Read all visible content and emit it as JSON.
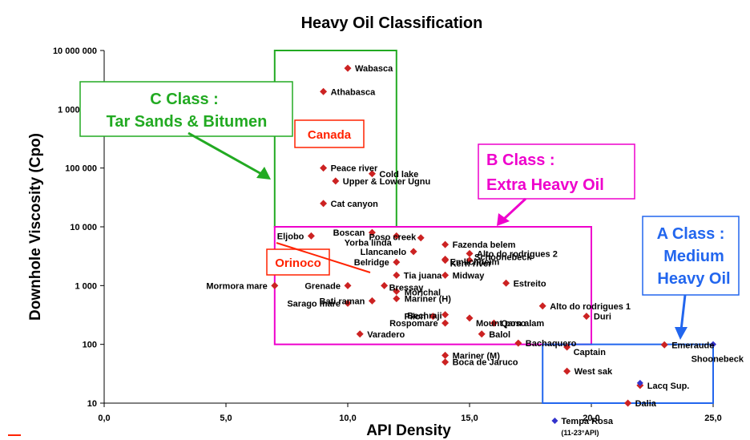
{
  "chart_data": {
    "type": "scatter",
    "title": "Heavy Oil Classification",
    "xlabel": "API Density",
    "ylabel": "Downhole Viscosity (Cpo)",
    "xlim": [
      0,
      25
    ],
    "ylim": [
      10,
      10000000
    ],
    "y_scale": "log",
    "grid": false,
    "x_ticks": [
      "0,0",
      "5,0",
      "10,0",
      "15,0",
      "20,0",
      "25,0"
    ],
    "y_ticks": [
      "10",
      "100",
      "1 000",
      "10 000",
      "100 000",
      "1 000 000",
      "10 000 000"
    ],
    "colors": {
      "point": "#cc2222",
      "blue_point": "#3333cc",
      "c_class": "#22aa22",
      "b_class": "#ee00cc",
      "a_class": "#2266ee",
      "region": "#ff2200"
    },
    "points": [
      {
        "name": "Wabasca",
        "x": 10.0,
        "y": 5000000
      },
      {
        "name": "Athabasca",
        "x": 9.0,
        "y": 2000000
      },
      {
        "name": "Peace river",
        "x": 9.0,
        "y": 100000
      },
      {
        "name": "Cold lake",
        "x": 11.0,
        "y": 80000
      },
      {
        "name": "Upper & Lower Ugnu",
        "x": 9.5,
        "y": 60000
      },
      {
        "name": "Cat canyon",
        "x": 9.0,
        "y": 25000
      },
      {
        "name": "Eljobo",
        "x": 8.5,
        "y": 7000
      },
      {
        "name": "Boscan",
        "x": 11.0,
        "y": 8000
      },
      {
        "name": "Yorba linda",
        "x": 12.0,
        "y": 7000
      },
      {
        "name": "Poso creek",
        "x": 13.0,
        "y": 6500
      },
      {
        "name": "Fazenda belem",
        "x": 14.0,
        "y": 5000
      },
      {
        "name": "Llancanelo",
        "x": 12.7,
        "y": 3800
      },
      {
        "name": "Alto do rodrigues 2",
        "x": 15.0,
        "y": 3500
      },
      {
        "name": "Emlichheim",
        "x": 14.0,
        "y": 2800
      },
      {
        "name": "Schoonebeck",
        "x": 15.0,
        "y": 2700
      },
      {
        "name": "Kern river",
        "x": 14.0,
        "y": 2700
      },
      {
        "name": "Belridge",
        "x": 12.0,
        "y": 2500
      },
      {
        "name": "Tia juana",
        "x": 12.0,
        "y": 1500
      },
      {
        "name": "Midway",
        "x": 14.0,
        "y": 1500
      },
      {
        "name": "Mormora mare",
        "x": 7.0,
        "y": 1000
      },
      {
        "name": "Grenade",
        "x": 10.0,
        "y": 1000
      },
      {
        "name": "Bressay",
        "x": 11.5,
        "y": 1000
      },
      {
        "name": "Estreito",
        "x": 16.5,
        "y": 1100
      },
      {
        "name": "Morichal",
        "x": 12.0,
        "y": 800
      },
      {
        "name": "Bati raman",
        "x": 11.0,
        "y": 550
      },
      {
        "name": "Sarago mare",
        "x": 10.0,
        "y": 500
      },
      {
        "name": "Mariner (H)",
        "x": 12.0,
        "y": 600
      },
      {
        "name": "Alto do rodrigues 1",
        "x": 18.0,
        "y": 450
      },
      {
        "name": "Pilon",
        "x": 13.5,
        "y": 300
      },
      {
        "name": "Bechraji",
        "x": 14.0,
        "y": 320
      },
      {
        "name": "Mount poso",
        "x": 15.0,
        "y": 280
      },
      {
        "name": "Duri",
        "x": 19.8,
        "y": 300
      },
      {
        "name": "Rospomare",
        "x": 14.0,
        "y": 230
      },
      {
        "name": "Qarn alam",
        "x": 16.0,
        "y": 230
      },
      {
        "name": "Varadero",
        "x": 10.5,
        "y": 150
      },
      {
        "name": "Balol",
        "x": 15.5,
        "y": 150
      },
      {
        "name": "Bachaquero",
        "x": 17.0,
        "y": 105
      },
      {
        "name": "Captain",
        "x": 19.0,
        "y": 90
      },
      {
        "name": "Emeraude",
        "x": 23.0,
        "y": 98
      },
      {
        "name": "Mariner (M)",
        "x": 14.0,
        "y": 65
      },
      {
        "name": "Boca de Jaruco",
        "x": 14.0,
        "y": 50
      },
      {
        "name": "West sak",
        "x": 19.0,
        "y": 35
      },
      {
        "name": "Lacq Sup.",
        "x": 22.0,
        "y": 20
      },
      {
        "name": "Dalia",
        "x": 21.5,
        "y": 10
      }
    ],
    "blue_points": [
      {
        "name": "Shoonebeck",
        "x": 25.0,
        "y": 100
      },
      {
        "name": "Tempa Rosa",
        "x": 18.5,
        "y": 7,
        "note": "(11-23°API)"
      },
      {
        "name": "",
        "x": 22.0,
        "y": 22
      }
    ],
    "classes": [
      {
        "name": "C Class",
        "label_line1": "C Class :",
        "label_line2": "Tar Sands & Bitumen",
        "x_range": [
          7,
          12
        ],
        "y_range": [
          10000,
          10000000
        ]
      },
      {
        "name": "B Class",
        "label_line1": "B Class :",
        "label_line2": "Extra Heavy Oil",
        "x_range": [
          7,
          20
        ],
        "y_range": [
          100,
          10000
        ]
      },
      {
        "name": "A Class",
        "label_line1": "A Class :",
        "label_line2": "Medium",
        "label_line3": "Heavy Oil",
        "x_range": [
          18,
          25
        ],
        "y_range": [
          10,
          100
        ]
      }
    ],
    "regions": [
      "Canada",
      "Orinoco"
    ]
  }
}
